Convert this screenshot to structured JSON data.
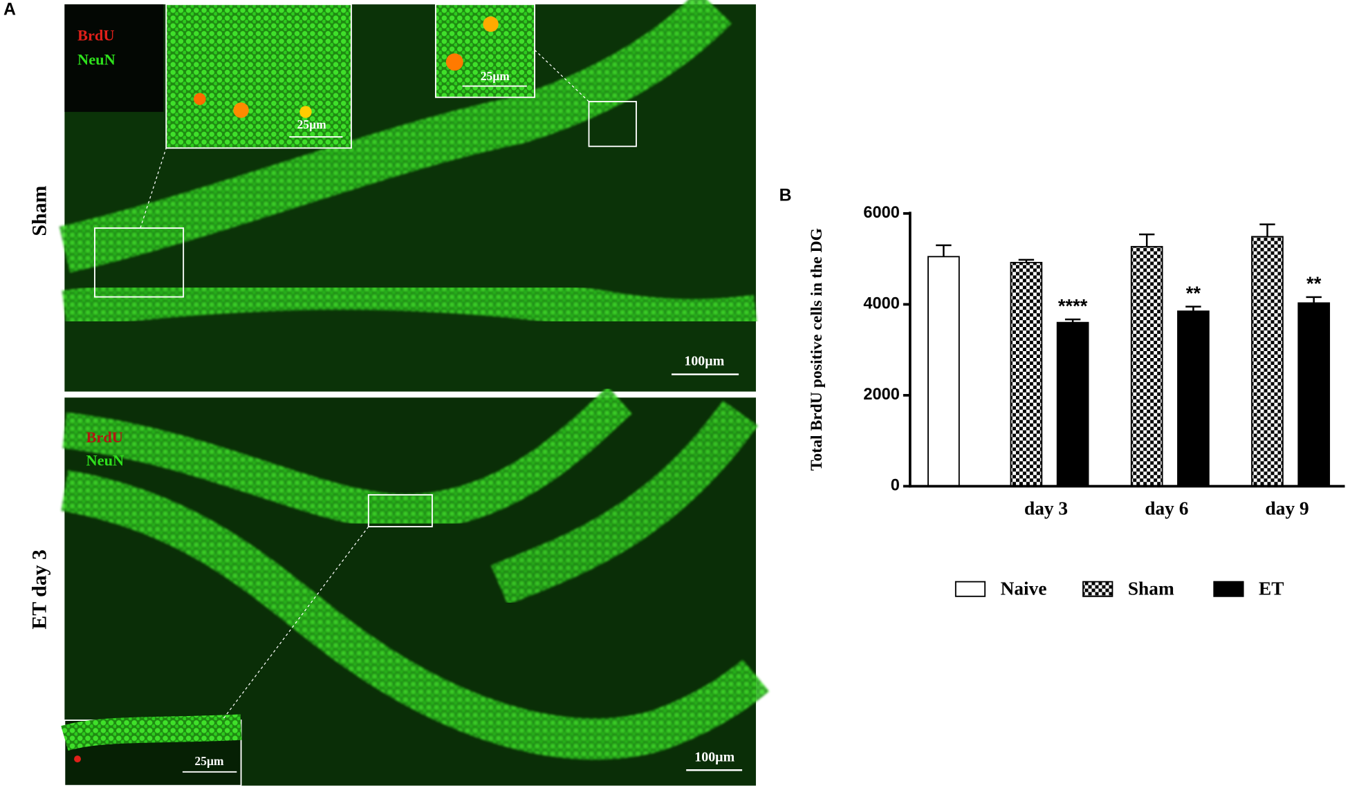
{
  "panel_a": {
    "label": "A",
    "rows": [
      {
        "label": "Sham",
        "markers": [
          "BrdU",
          "NeuN"
        ],
        "inset_scales": [
          "25µm",
          "25µm"
        ],
        "scale": "100µm"
      },
      {
        "label": "ET day 3",
        "markers": [
          "BrdU",
          "NeuN"
        ],
        "inset_scales": [
          "25µm"
        ],
        "scale": "100µm"
      }
    ]
  },
  "chart_data": {
    "type": "bar",
    "panel_label": "B",
    "y_label": "Total BrdU positive cells in the DG",
    "categories": [
      null,
      "day 3",
      "day 6",
      "day 9"
    ],
    "series": [
      {
        "name": "Naive",
        "color": "#ffffff",
        "pattern": "solid",
        "values": [
          5050,
          null,
          null,
          null
        ],
        "errors": [
          250,
          null,
          null,
          null
        ]
      },
      {
        "name": "Sham",
        "color": "#000000",
        "pattern": "checker",
        "values": [
          null,
          4920,
          5270,
          5490
        ],
        "errors": [
          null,
          60,
          270,
          270
        ]
      },
      {
        "name": "ET",
        "color": "#000000",
        "pattern": "solid",
        "values": [
          null,
          3600,
          3850,
          4030
        ],
        "errors": [
          null,
          70,
          100,
          130
        ],
        "annotations": [
          null,
          "****",
          "**",
          "**"
        ]
      }
    ],
    "ylim": [
      0,
      6000
    ],
    "yticks": [
      0,
      2000,
      4000,
      6000
    ],
    "grid": false
  }
}
